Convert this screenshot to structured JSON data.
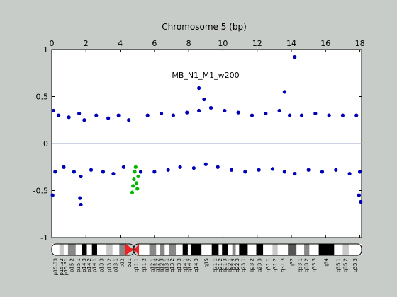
{
  "chart_data": {
    "type": "scatter",
    "title": "Chromosome 5 (bp)",
    "annotation": "MB_N1_M1_w200",
    "xlim": [
      0,
      18.1
    ],
    "ylim": [
      -1,
      1
    ],
    "x_ticks": [
      0,
      2,
      4,
      6,
      8,
      10,
      12,
      14,
      16,
      18
    ],
    "y_ticks": [
      1,
      0.5,
      0,
      -0.5,
      -1
    ],
    "y_tick_labels": [
      "1",
      "0.5",
      "0",
      "-0.5",
      "-1"
    ],
    "baseline": 0,
    "grid": false,
    "series": [
      {
        "color": "#0000b8",
        "x": [
          0.1,
          0.2,
          0.4,
          0.7,
          1.0,
          1.3,
          1.6,
          1.7,
          1.9,
          2.3,
          2.6,
          3.0,
          3.3,
          3.6,
          3.9,
          4.2,
          4.5,
          5.2,
          5.6,
          6.0,
          6.4,
          6.8,
          7.1,
          7.5,
          7.9,
          8.3,
          8.6,
          9.0,
          9.3,
          9.7,
          10.1,
          10.5,
          10.9,
          11.3,
          11.7,
          12.1,
          12.5,
          12.9,
          13.3,
          13.6,
          13.9,
          14.2,
          14.6,
          15.0,
          15.4,
          15.8,
          16.2,
          16.6,
          17.0,
          17.4,
          17.8,
          18.0,
          0.05,
          1.65,
          1.7,
          8.6,
          8.9,
          13.6,
          14.2,
          18.05,
          17.95
        ],
        "y": [
          0.35,
          -0.3,
          0.3,
          -0.25,
          0.28,
          -0.3,
          0.32,
          -0.35,
          0.25,
          -0.28,
          0.3,
          -0.3,
          0.27,
          -0.32,
          0.3,
          -0.25,
          0.25,
          -0.3,
          0.3,
          -0.3,
          0.32,
          -0.28,
          0.3,
          -0.25,
          0.33,
          -0.26,
          0.35,
          -0.22,
          0.38,
          -0.25,
          0.35,
          -0.28,
          0.33,
          -0.3,
          0.3,
          -0.28,
          0.32,
          -0.27,
          0.35,
          -0.3,
          0.3,
          -0.32,
          0.3,
          -0.28,
          0.32,
          -0.3,
          0.3,
          -0.28,
          0.3,
          -0.32,
          0.3,
          -0.3,
          -0.55,
          -0.58,
          -0.65,
          0.59,
          0.47,
          0.55,
          0.92,
          -0.62,
          -0.55
        ]
      },
      {
        "color": "#00b800",
        "x": [
          4.7,
          4.75,
          4.8,
          4.85,
          4.9,
          4.95,
          5.0,
          5.05
        ],
        "y": [
          -0.52,
          -0.45,
          -0.38,
          -0.3,
          -0.25,
          -0.42,
          -0.48,
          -0.35
        ]
      }
    ],
    "ideogram": {
      "centromere_x": 4.8,
      "bands": [
        {
          "name": "p15.33",
          "start": 0.0,
          "end": 0.45,
          "stain": "gneg"
        },
        {
          "name": "p15.32",
          "start": 0.45,
          "end": 0.7,
          "stain": "gpos25"
        },
        {
          "name": "p15.31",
          "start": 0.7,
          "end": 0.95,
          "stain": "gneg"
        },
        {
          "name": "p15.2",
          "start": 0.95,
          "end": 1.4,
          "stain": "gpos50"
        },
        {
          "name": "p15.1",
          "start": 1.4,
          "end": 1.75,
          "stain": "gneg"
        },
        {
          "name": "p14.3",
          "start": 1.75,
          "end": 2.05,
          "stain": "gpos100"
        },
        {
          "name": "p14.2",
          "start": 2.05,
          "end": 2.35,
          "stain": "gneg"
        },
        {
          "name": "p14.1",
          "start": 2.35,
          "end": 2.65,
          "stain": "gpos100"
        },
        {
          "name": "p13.3",
          "start": 2.65,
          "end": 3.2,
          "stain": "gneg"
        },
        {
          "name": "p13.2",
          "start": 3.2,
          "end": 3.55,
          "stain": "gpos25"
        },
        {
          "name": "p13.1",
          "start": 3.55,
          "end": 3.95,
          "stain": "gneg"
        },
        {
          "name": "p12",
          "start": 3.95,
          "end": 4.3,
          "stain": "gpos50"
        },
        {
          "name": "p11",
          "start": 4.3,
          "end": 4.8,
          "stain": "acen"
        },
        {
          "name": "q11.1",
          "start": 4.8,
          "end": 5.1,
          "stain": "acen"
        },
        {
          "name": "q11.2",
          "start": 5.1,
          "end": 5.7,
          "stain": "gneg"
        },
        {
          "name": "q12.1",
          "start": 5.7,
          "end": 6.1,
          "stain": "gpos50"
        },
        {
          "name": "q12.2",
          "start": 6.1,
          "end": 6.3,
          "stain": "gneg"
        },
        {
          "name": "q12.3",
          "start": 6.3,
          "end": 6.6,
          "stain": "gpos50"
        },
        {
          "name": "q13.1",
          "start": 6.6,
          "end": 6.85,
          "stain": "gneg"
        },
        {
          "name": "q13.2",
          "start": 6.85,
          "end": 7.25,
          "stain": "gpos50"
        },
        {
          "name": "q13.3",
          "start": 7.25,
          "end": 7.65,
          "stain": "gneg"
        },
        {
          "name": "q14.1",
          "start": 7.65,
          "end": 7.95,
          "stain": "gpos100"
        },
        {
          "name": "q14.2",
          "start": 7.95,
          "end": 8.15,
          "stain": "gneg"
        },
        {
          "name": "q14.3",
          "start": 8.15,
          "end": 8.75,
          "stain": "gpos100"
        },
        {
          "name": "q15",
          "start": 8.75,
          "end": 9.35,
          "stain": "gneg"
        },
        {
          "name": "q21.1",
          "start": 9.35,
          "end": 9.75,
          "stain": "gpos100"
        },
        {
          "name": "q21.2",
          "start": 9.75,
          "end": 9.95,
          "stain": "gneg"
        },
        {
          "name": "q21.3",
          "start": 9.95,
          "end": 10.3,
          "stain": "gpos100"
        },
        {
          "name": "q22.1",
          "start": 10.3,
          "end": 10.55,
          "stain": "gneg"
        },
        {
          "name": "q22.2",
          "start": 10.55,
          "end": 10.75,
          "stain": "gpos50"
        },
        {
          "name": "q22.3",
          "start": 10.75,
          "end": 10.95,
          "stain": "gneg"
        },
        {
          "name": "q23.1",
          "start": 10.95,
          "end": 11.45,
          "stain": "gpos100"
        },
        {
          "name": "q23.2",
          "start": 11.45,
          "end": 11.95,
          "stain": "gneg"
        },
        {
          "name": "q23.3",
          "start": 11.95,
          "end": 12.35,
          "stain": "gpos100"
        },
        {
          "name": "q31.1",
          "start": 12.35,
          "end": 12.9,
          "stain": "gneg"
        },
        {
          "name": "q31.2",
          "start": 12.9,
          "end": 13.2,
          "stain": "gpos25"
        },
        {
          "name": "q31.3",
          "start": 13.2,
          "end": 13.8,
          "stain": "gneg"
        },
        {
          "name": "q32",
          "start": 13.8,
          "end": 14.3,
          "stain": "gpos75"
        },
        {
          "name": "q33.1",
          "start": 14.3,
          "end": 14.75,
          "stain": "gneg"
        },
        {
          "name": "q33.2",
          "start": 14.75,
          "end": 15.05,
          "stain": "gpos50"
        },
        {
          "name": "q33.3",
          "start": 15.05,
          "end": 15.6,
          "stain": "gneg"
        },
        {
          "name": "q34",
          "start": 15.6,
          "end": 16.5,
          "stain": "gpos100"
        },
        {
          "name": "q35.1",
          "start": 16.5,
          "end": 17.0,
          "stain": "gneg"
        },
        {
          "name": "q35.2",
          "start": 17.0,
          "end": 17.35,
          "stain": "gpos25"
        },
        {
          "name": "q35.3",
          "start": 17.35,
          "end": 18.1,
          "stain": "gneg"
        }
      ]
    }
  }
}
